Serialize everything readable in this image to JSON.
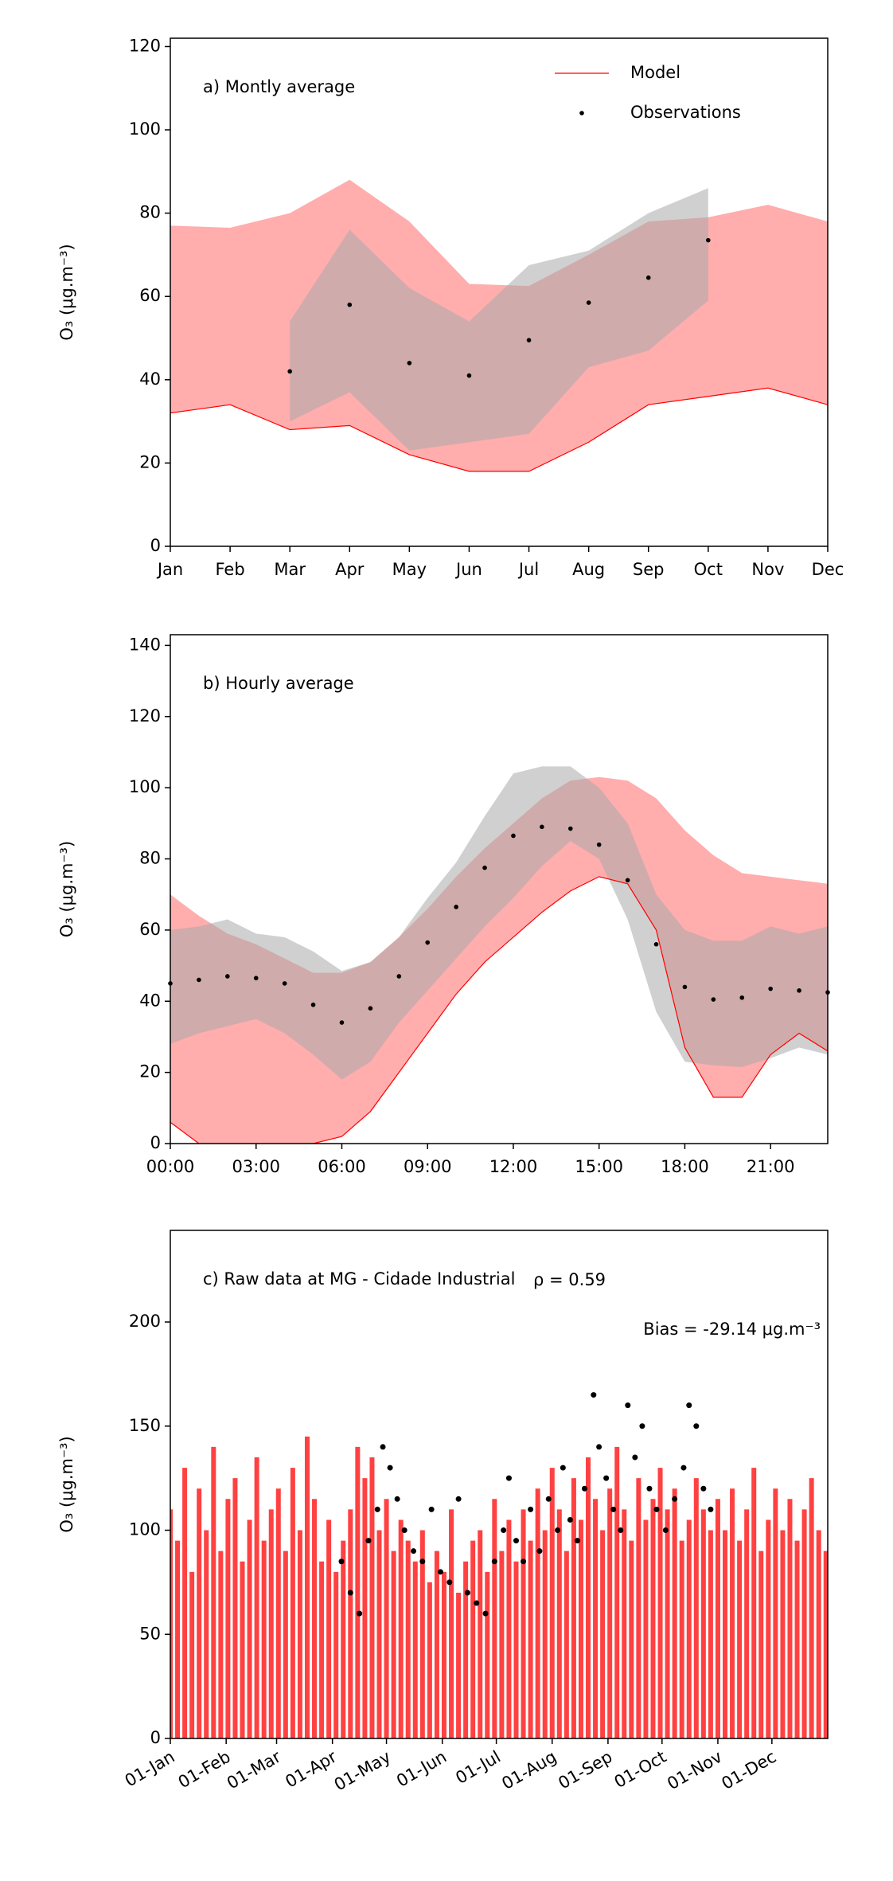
{
  "chart_data": [
    {
      "type": "line",
      "title": "a) Montly average",
      "ylabel": "O₃ (μg.m⁻³)",
      "categories": [
        "Jan",
        "Feb",
        "Mar",
        "Apr",
        "May",
        "Jun",
        "Jul",
        "Aug",
        "Sep",
        "Oct",
        "Nov",
        "Dec"
      ],
      "ylim": [
        0,
        122
      ],
      "yticks": [
        0,
        20,
        40,
        60,
        80,
        100,
        120
      ],
      "legend": "upper right",
      "series": [
        {
          "name": "Model",
          "color": "#ff0000",
          "band_color": "#ff9999",
          "mark": "line",
          "values": [
            32,
            34,
            28,
            29,
            22,
            18,
            18,
            25,
            34,
            36,
            38,
            34
          ],
          "upper": [
            77,
            76.5,
            80,
            88,
            78,
            63,
            62.5,
            70,
            78,
            79,
            82,
            78
          ]
        },
        {
          "name": "Observations",
          "color": "#000000",
          "band_color": "#aaaaaa",
          "mark": "dots",
          "values": [
            null,
            null,
            42,
            58,
            44,
            41,
            49.5,
            58.5,
            64.5,
            73.5,
            null,
            null
          ],
          "lower": [
            null,
            null,
            30,
            37,
            23,
            25,
            27,
            43,
            47,
            59,
            null,
            null
          ],
          "upper": [
            null,
            null,
            54,
            76,
            62,
            54,
            67.5,
            71,
            80,
            86,
            null,
            null
          ]
        }
      ]
    },
    {
      "type": "line",
      "title": "b) Hourly average",
      "ylabel": "O₃ (μg.m⁻³)",
      "x": [
        0,
        1,
        2,
        3,
        4,
        5,
        6,
        7,
        8,
        9,
        10,
        11,
        12,
        13,
        14,
        15,
        16,
        17,
        18,
        19,
        20,
        21,
        22,
        23
      ],
      "xlim": [
        0,
        23
      ],
      "xticks": [
        {
          "value": 0,
          "label": "00:00"
        },
        {
          "value": 3,
          "label": "03:00"
        },
        {
          "value": 6,
          "label": "06:00"
        },
        {
          "value": 9,
          "label": "09:00"
        },
        {
          "value": 12,
          "label": "12:00"
        },
        {
          "value": 15,
          "label": "15:00"
        },
        {
          "value": 18,
          "label": "18:00"
        },
        {
          "value": 21,
          "label": "21:00"
        }
      ],
      "ylim": [
        0,
        143
      ],
      "yticks": [
        0,
        20,
        40,
        60,
        80,
        100,
        120,
        140
      ],
      "series": [
        {
          "name": "Model",
          "color": "#ff0000",
          "band_color": "#ff9999",
          "mark": "line",
          "values": [
            6,
            0,
            -1,
            -2,
            -1,
            0,
            2,
            9,
            20,
            31,
            42,
            51,
            58,
            65,
            71,
            75,
            73,
            60,
            27,
            13,
            13,
            25,
            31,
            26
          ],
          "upper": [
            70,
            64,
            59,
            56,
            52,
            48,
            48,
            51,
            58,
            66,
            75,
            83,
            90,
            97,
            102,
            103,
            102,
            97,
            88,
            81,
            76,
            75,
            74,
            73
          ]
        },
        {
          "name": "Observations",
          "color": "#000000",
          "band_color": "#aaaaaa",
          "mark": "dots",
          "values": [
            45,
            46,
            47,
            46.5,
            45,
            39,
            34,
            38,
            47,
            56.5,
            66.5,
            77.5,
            86.5,
            89,
            88.5,
            84,
            74,
            56,
            44,
            40.5,
            41,
            43.5,
            43,
            42.5
          ],
          "lower": [
            28,
            31,
            33,
            35,
            31,
            25,
            18,
            23,
            34,
            43,
            52,
            61,
            69,
            78,
            85,
            80,
            63,
            37,
            23,
            22,
            21.5,
            24,
            27,
            25
          ],
          "upper": [
            60,
            61,
            63,
            59,
            58,
            54,
            48.5,
            51,
            58,
            69,
            79,
            92,
            104,
            106,
            106,
            100,
            90,
            70,
            60,
            57,
            57,
            61,
            59,
            61
          ]
        }
      ]
    },
    {
      "type": "scatter",
      "title": "c) Raw data at MG - Cidade Industrial",
      "ylabel": "O₃ (μg.m⁻³)",
      "annotations": [
        "ρ = 0.59",
        "Bias = -29.14 μg.m⁻³"
      ],
      "xlim": [
        0,
        365
      ],
      "xticks": [
        {
          "value": 0,
          "label": "01-Jan"
        },
        {
          "value": 31,
          "label": "01-Feb"
        },
        {
          "value": 59,
          "label": "01-Mar"
        },
        {
          "value": 90,
          "label": "01-Apr"
        },
        {
          "value": 120,
          "label": "01-May"
        },
        {
          "value": 151,
          "label": "01-Jun"
        },
        {
          "value": 181,
          "label": "01-Jul"
        },
        {
          "value": 212,
          "label": "01-Aug"
        },
        {
          "value": 243,
          "label": "01-Sep"
        },
        {
          "value": 273,
          "label": "01-Oct"
        },
        {
          "value": 304,
          "label": "01-Nov"
        },
        {
          "value": 334,
          "label": "01-Dec"
        }
      ],
      "ylim": [
        0,
        244
      ],
      "yticks": [
        0,
        50,
        100,
        150,
        200
      ],
      "series": [
        {
          "name": "Model",
          "color": "#ff2020",
          "mark": "spikes",
          "x": [
            0,
            4,
            8,
            12,
            16,
            20,
            24,
            28,
            32,
            36,
            40,
            44,
            48,
            52,
            56,
            60,
            64,
            68,
            72,
            76,
            80,
            84,
            88,
            92,
            96,
            100,
            104,
            108,
            112,
            116,
            120,
            124,
            128,
            132,
            136,
            140,
            144,
            148,
            152,
            156,
            160,
            164,
            168,
            172,
            176,
            180,
            184,
            188,
            192,
            196,
            200,
            204,
            208,
            212,
            216,
            220,
            224,
            228,
            232,
            236,
            240,
            244,
            248,
            252,
            256,
            260,
            264,
            268,
            272,
            276,
            280,
            284,
            288,
            292,
            296,
            300,
            304,
            308,
            312,
            316,
            320,
            324,
            328,
            332,
            336,
            340,
            344,
            348,
            352,
            356,
            360,
            364
          ],
          "values": [
            110,
            95,
            130,
            80,
            120,
            100,
            140,
            90,
            115,
            125,
            85,
            105,
            135,
            95,
            110,
            120,
            90,
            130,
            100,
            145,
            115,
            85,
            105,
            80,
            95,
            110,
            140,
            125,
            135,
            100,
            115,
            90,
            105,
            95,
            85,
            100,
            75,
            90,
            80,
            110,
            70,
            85,
            95,
            100,
            80,
            115,
            90,
            105,
            85,
            110,
            95,
            120,
            100,
            130,
            110,
            90,
            125,
            105,
            135,
            115,
            100,
            120,
            140,
            110,
            95,
            125,
            105,
            115,
            130,
            110,
            120,
            95,
            105,
            125,
            110,
            100,
            115,
            100,
            120,
            95,
            110,
            130,
            90,
            105,
            120,
            100,
            115,
            95,
            110,
            125,
            100,
            90
          ]
        },
        {
          "name": "Observations",
          "color": "#000000",
          "mark": "dots",
          "x": [
            95,
            100,
            105,
            110,
            115,
            118,
            122,
            126,
            130,
            135,
            140,
            145,
            150,
            155,
            160,
            165,
            170,
            175,
            180,
            185,
            188,
            192,
            196,
            200,
            205,
            210,
            215,
            218,
            222,
            226,
            230,
            235,
            238,
            242,
            246,
            250,
            254,
            258,
            262,
            266,
            270,
            275,
            280,
            285,
            288,
            292,
            296,
            300
          ],
          "values": [
            85,
            70,
            60,
            95,
            110,
            140,
            130,
            115,
            100,
            90,
            85,
            110,
            80,
            75,
            115,
            70,
            65,
            60,
            85,
            100,
            125,
            95,
            85,
            110,
            90,
            115,
            100,
            130,
            105,
            95,
            120,
            165,
            140,
            125,
            110,
            100,
            160,
            135,
            150,
            120,
            110,
            100,
            115,
            130,
            160,
            150,
            120,
            110
          ]
        }
      ]
    }
  ]
}
